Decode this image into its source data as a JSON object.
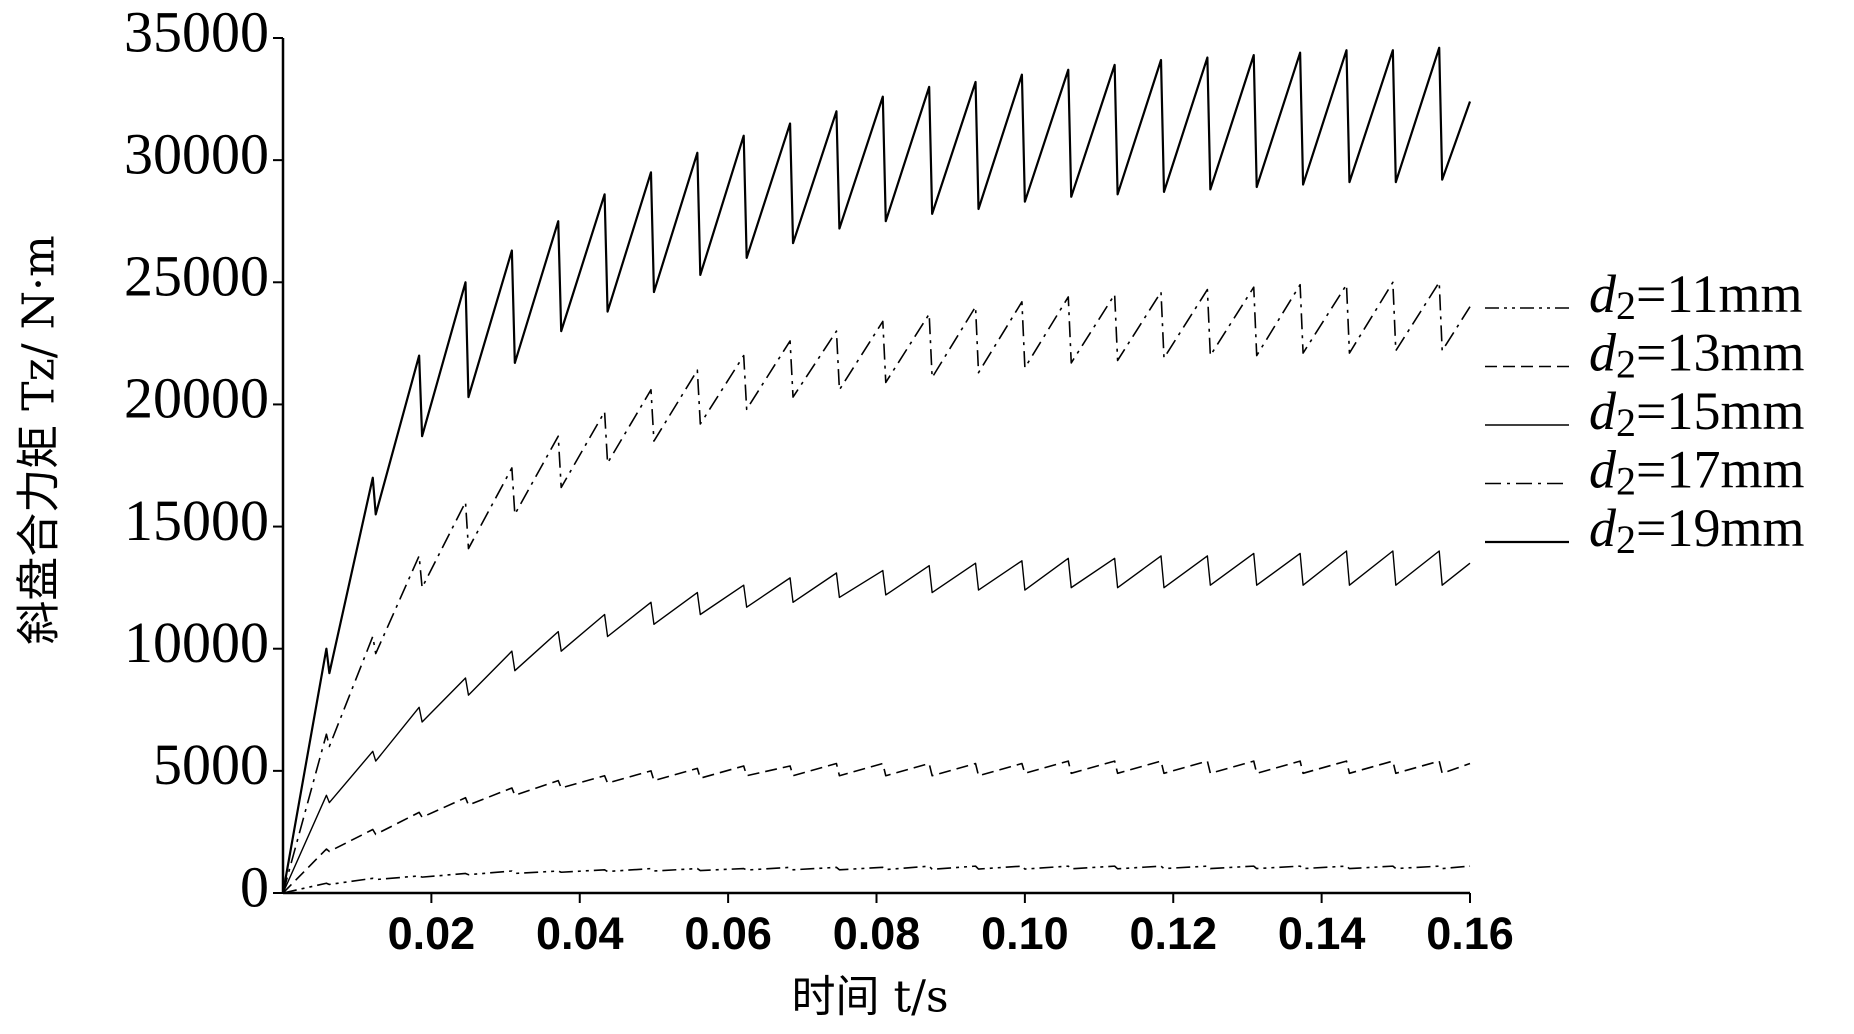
{
  "chart_data": {
    "type": "line",
    "x_label": "时间 t/s",
    "y_label": "斜盘合力矩 Tz/ N·m",
    "x": [
      0,
      0.00585,
      0.00625,
      0.0121,
      0.0125,
      0.01835,
      0.01875,
      0.0246,
      0.025,
      0.03085,
      0.03125,
      0.0371,
      0.0375,
      0.04335,
      0.04375,
      0.0496,
      0.05,
      0.05585,
      0.05625,
      0.0621,
      0.0625,
      0.06835,
      0.06875,
      0.0746,
      0.075,
      0.08085,
      0.08125,
      0.0871,
      0.0875,
      0.09335,
      0.09375,
      0.0996,
      0.1,
      0.10585,
      0.10625,
      0.1121,
      0.1125,
      0.11835,
      0.11875,
      0.1246,
      0.125,
      0.13085,
      0.13125,
      0.1371,
      0.1375,
      0.14335,
      0.14375,
      0.1496,
      0.15,
      0.15585,
      0.15625,
      0.16
    ],
    "series": [
      {
        "name": "d2=11mm",
        "color": "#000000",
        "dash": "14 5 3 5 3 5",
        "width": 1.6,
        "values": [
          0,
          400,
          350,
          600,
          550,
          700,
          650,
          800,
          750,
          900,
          800,
          900,
          850,
          950,
          880,
          1000,
          900,
          1000,
          920,
          1000,
          940,
          1050,
          950,
          1050,
          950,
          1050,
          960,
          1100,
          970,
          1100,
          980,
          1100,
          980,
          1100,
          990,
          1100,
          990,
          1100,
          1000,
          1100,
          1000,
          1100,
          1000,
          1100,
          1000,
          1100,
          1000,
          1100,
          1000,
          1100,
          1000,
          1100
        ]
      },
      {
        "name": "d2=13mm",
        "color": "#000000",
        "dash": "12 6",
        "width": 1.6,
        "values": [
          0,
          1800,
          1700,
          2600,
          2400,
          3300,
          3100,
          3900,
          3600,
          4300,
          4000,
          4600,
          4300,
          4800,
          4500,
          5000,
          4600,
          5100,
          4700,
          5200,
          4800,
          5200,
          4800,
          5300,
          4800,
          5300,
          4800,
          5300,
          4800,
          5300,
          4800,
          5300,
          4900,
          5400,
          4900,
          5400,
          4900,
          5400,
          4900,
          5400,
          4900,
          5400,
          4900,
          5400,
          4900,
          5400,
          4900,
          5400,
          4900,
          5400,
          4900,
          5300
        ]
      },
      {
        "name": "d2=15mm",
        "color": "#000000",
        "dash": "none",
        "width": 1.4,
        "values": [
          0,
          4000,
          3700,
          5800,
          5400,
          7600,
          7000,
          8800,
          8100,
          9900,
          9100,
          10700,
          9900,
          11400,
          10500,
          11900,
          11000,
          12300,
          11400,
          12600,
          11700,
          12900,
          11900,
          13100,
          12100,
          13200,
          12200,
          13400,
          12300,
          13500,
          12400,
          13600,
          12400,
          13700,
          12500,
          13700,
          12500,
          13800,
          12500,
          13800,
          12600,
          13900,
          12600,
          13900,
          12600,
          14000,
          12600,
          14000,
          12600,
          14000,
          12600,
          13500
        ]
      },
      {
        "name": "d2=17mm",
        "color": "#000000",
        "dash": "16 6 3 6",
        "width": 1.6,
        "values": [
          0,
          6500,
          6000,
          10500,
          9800,
          13800,
          12500,
          16000,
          14100,
          17400,
          15500,
          18700,
          16600,
          19700,
          17600,
          20600,
          18500,
          21400,
          19200,
          22000,
          19800,
          22600,
          20300,
          23000,
          20600,
          23400,
          20900,
          23700,
          21100,
          24000,
          21300,
          24200,
          21500,
          24400,
          21700,
          24500,
          21800,
          24600,
          21900,
          24700,
          22000,
          24800,
          22000,
          24900,
          22100,
          24900,
          22100,
          25000,
          22200,
          25000,
          22200,
          24000
        ]
      },
      {
        "name": "d2=19mm",
        "color": "#000000",
        "dash": "none",
        "width": 2.2,
        "values": [
          0,
          10000,
          9000,
          17000,
          15500,
          22000,
          18700,
          25000,
          20300,
          26300,
          21700,
          27500,
          23000,
          28600,
          23800,
          29500,
          24600,
          30300,
          25300,
          31000,
          26000,
          31500,
          26600,
          32000,
          27200,
          32600,
          27500,
          33000,
          27800,
          33200,
          28000,
          33500,
          28300,
          33700,
          28500,
          33900,
          28600,
          34100,
          28700,
          34200,
          28800,
          34300,
          28900,
          34400,
          29000,
          34500,
          29100,
          34500,
          29100,
          34600,
          29200,
          32400
        ]
      }
    ],
    "xlim": [
      0,
      0.16
    ],
    "xticks": [
      0.02,
      0.04,
      0.06,
      0.08,
      {
        "value": 0.1,
        "label": "0.10"
      },
      0.12,
      0.14,
      0.16
    ],
    "ylim": [
      0,
      35000
    ],
    "yticks": [
      0,
      5000,
      10000,
      15000,
      20000,
      25000,
      30000,
      35000
    ],
    "grid": false,
    "legend": "right"
  }
}
